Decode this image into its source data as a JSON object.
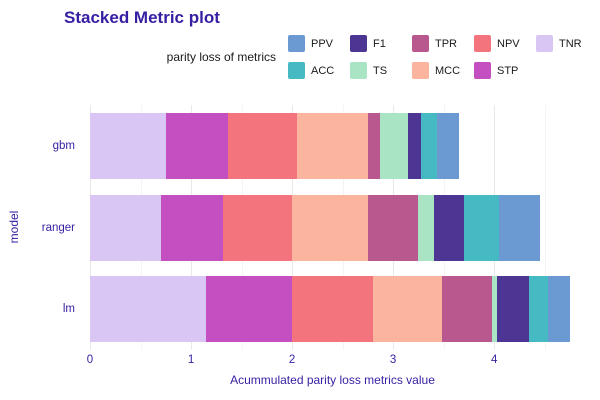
{
  "page": {
    "title": "Stacked Metric plot"
  },
  "legend": {
    "title": "parity loss of metrics",
    "items": [
      {
        "label": "PPV",
        "color": "#6B9AD2"
      },
      {
        "label": "ACC",
        "color": "#46BAC2"
      },
      {
        "label": "F1",
        "color": "#4C3593"
      },
      {
        "label": "TS",
        "color": "#A9E5C5"
      },
      {
        "label": "TPR",
        "color": "#B9588F"
      },
      {
        "label": "MCC",
        "color": "#FBB49E"
      },
      {
        "label": "NPV",
        "color": "#F4747E"
      },
      {
        "label": "STP",
        "color": "#C44FC0"
      },
      {
        "label": "TNR",
        "color": "#D9C6F5"
      }
    ]
  },
  "chart_data": {
    "type": "bar",
    "orientation": "horizontal",
    "stacked": true,
    "title": "Stacked Metric plot",
    "xlabel": "Acummulated parity loss metrics value",
    "ylabel": "model",
    "legend_title": "parity loss of metrics",
    "legend_position": "top",
    "grid": true,
    "categories": [
      "gbm",
      "ranger",
      "lm"
    ],
    "x_ticks": [
      0,
      1,
      2,
      3,
      4
    ],
    "xlim": [
      0,
      4.8
    ],
    "stack_order": [
      "TNR",
      "STP",
      "NPV",
      "MCC",
      "TPR",
      "TS",
      "F1",
      "ACC",
      "PPV"
    ],
    "series": [
      {
        "name": "TNR",
        "color": "#D9C6F5",
        "values": [
          0.75,
          0.7,
          1.15
        ]
      },
      {
        "name": "STP",
        "color": "#C44FC0",
        "values": [
          0.62,
          0.62,
          0.85
        ]
      },
      {
        "name": "NPV",
        "color": "#F4747E",
        "values": [
          0.68,
          0.68,
          0.8
        ]
      },
      {
        "name": "MCC",
        "color": "#FBB49E",
        "values": [
          0.7,
          0.75,
          0.68
        ]
      },
      {
        "name": "TPR",
        "color": "#B9588F",
        "values": [
          0.12,
          0.5,
          0.5
        ]
      },
      {
        "name": "TS",
        "color": "#A9E5C5",
        "values": [
          0.28,
          0.15,
          0.05
        ]
      },
      {
        "name": "F1",
        "color": "#4C3593",
        "values": [
          0.13,
          0.3,
          0.32
        ]
      },
      {
        "name": "ACC",
        "color": "#46BAC2",
        "values": [
          0.15,
          0.35,
          0.18
        ]
      },
      {
        "name": "PPV",
        "color": "#6B9AD2",
        "values": [
          0.22,
          0.4,
          0.22
        ]
      }
    ],
    "totals": [
      3.65,
      4.45,
      4.75
    ]
  }
}
